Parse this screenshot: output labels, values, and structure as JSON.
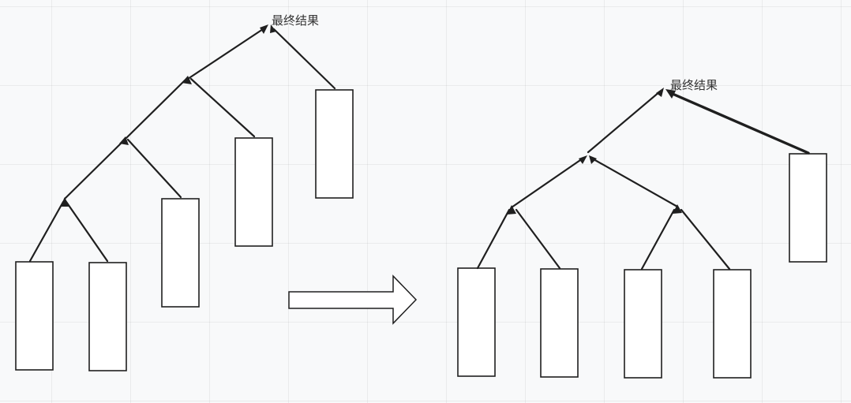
{
  "left_tree": {
    "result_label": "最终结果"
  },
  "right_tree": {
    "result_label": "最终结果"
  },
  "colors": {
    "background": "#f8f9fa",
    "stroke": "#1f1f1f",
    "label": "#333333"
  }
}
